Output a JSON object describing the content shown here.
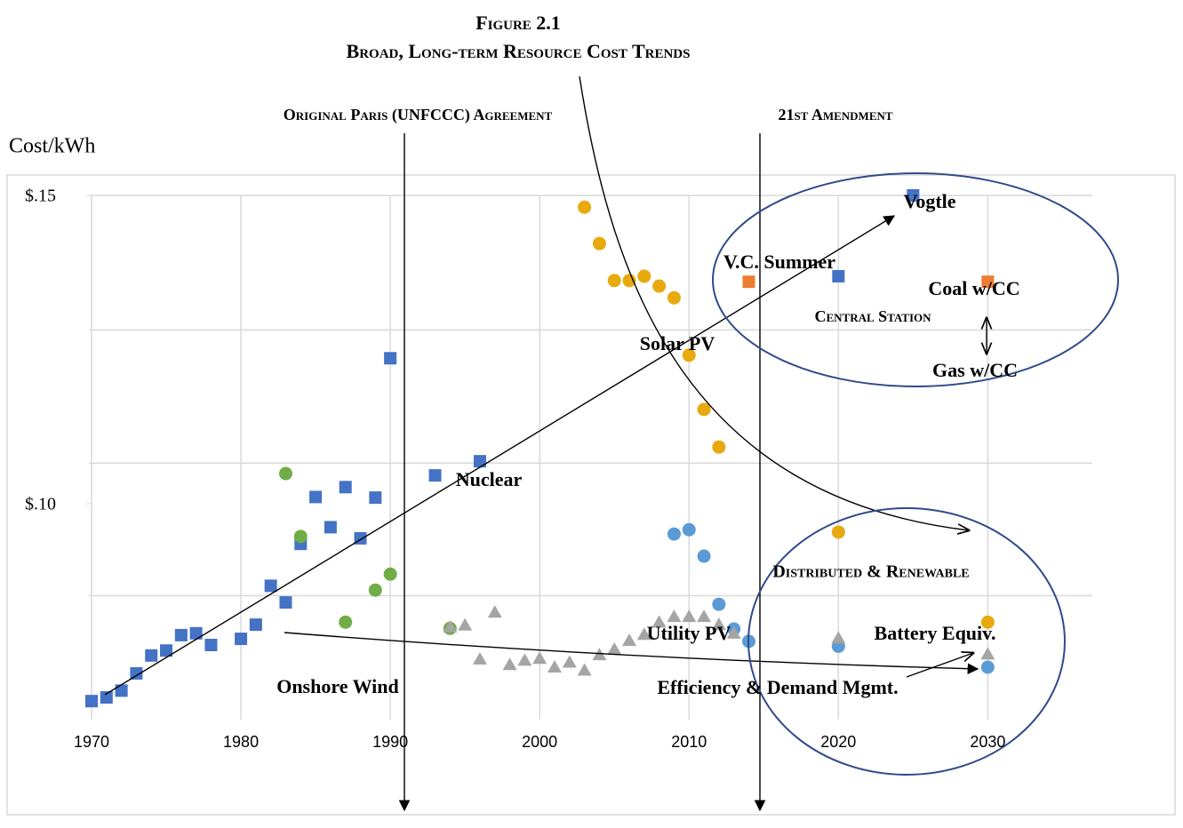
{
  "chart_data": {
    "type": "scatter",
    "title": "Figure 2.1",
    "subtitle": "Broad, Long-term Resource Cost Trends",
    "y_label": "Cost/kWh",
    "annotations": [
      "Original Paris (UNFCCC) Agreement",
      "21st Amendment",
      "Vogtle",
      "V.C. Summer",
      "Central Station",
      "Gas w/CC",
      "Distributed & Renewable",
      "Battery Equiv."
    ],
    "xlim": [
      1970,
      2037
    ],
    "ylim": [
      0.065,
      0.15
    ],
    "xticks": [
      1970,
      1980,
      1990,
      2000,
      2010,
      2020,
      2030
    ],
    "yticks": [
      {
        "value": 0.15,
        "label": "$.15"
      },
      {
        "value": 0.1,
        "label": "$.10"
      }
    ],
    "ygrid": [
      0.15,
      0.1282,
      0.1066,
      0.0851
    ],
    "grid": true,
    "series": [
      {
        "name": "Nuclear",
        "color": "#4472c4",
        "marker": "square",
        "x": [
          1970,
          1971,
          1972,
          1973,
          1974,
          1975,
          1976,
          1977,
          1978,
          1980,
          1981,
          1982,
          1983,
          1984,
          1985,
          1986,
          1987,
          1988,
          1989,
          1990,
          1993,
          1996,
          2020,
          2025
        ],
        "y": [
          0.068,
          0.0686,
          0.0697,
          0.0725,
          0.0754,
          0.0762,
          0.0787,
          0.079,
          0.0771,
          0.0781,
          0.0804,
          0.0867,
          0.084,
          0.0935,
          0.1011,
          0.0962,
          0.1027,
          0.0944,
          0.101,
          0.1236,
          0.1046,
          0.1069,
          0.1369,
          0.15
        ]
      },
      {
        "name": "Coal w/CC",
        "color": "#ed7d31",
        "marker": "square",
        "x": [
          2014,
          2030
        ],
        "y": [
          0.136,
          0.136
        ]
      },
      {
        "name": "Solar PV",
        "color": "#e8a90e",
        "marker": "circle",
        "x": [
          2003,
          2004,
          2005,
          2006,
          2007,
          2008,
          2009,
          2010,
          2011,
          2012,
          2020,
          2030
        ],
        "y": [
          0.1481,
          0.1422,
          0.1362,
          0.1362,
          0.1369,
          0.1353,
          0.1334,
          0.1241,
          0.1153,
          0.1092,
          0.0954,
          0.0808
        ]
      },
      {
        "name": "Utility PV",
        "color": "#5b9bd5",
        "marker": "circle",
        "x": [
          2009,
          2010,
          2011,
          2012,
          2013,
          2014,
          2020,
          2030
        ],
        "y": [
          0.0951,
          0.0958,
          0.0915,
          0.0837,
          0.0797,
          0.0777,
          0.0769,
          0.0735
        ]
      },
      {
        "name": "Onshore Wind",
        "color": "#70ad47",
        "marker": "circle",
        "x": [
          1983,
          1984,
          1987,
          1989,
          1990,
          1994
        ],
        "y": [
          0.1049,
          0.0947,
          0.0808,
          0.086,
          0.0886,
          0.0798
        ]
      },
      {
        "name": "Efficiency & Demand Mgmt.",
        "color": "#a5a5a5",
        "marker": "triangle",
        "x": [
          1994,
          1995,
          1996,
          1997,
          1998,
          1999,
          2000,
          2001,
          2002,
          2003,
          2004,
          2005,
          2006,
          2007,
          2008,
          2009,
          2010,
          2011,
          2012,
          2013,
          2020,
          2030
        ],
        "y": [
          0.08,
          0.0803,
          0.0748,
          0.0824,
          0.0739,
          0.0746,
          0.0749,
          0.0735,
          0.0743,
          0.073,
          0.0755,
          0.0764,
          0.0778,
          0.0788,
          0.0808,
          0.0817,
          0.0817,
          0.0817,
          0.0804,
          0.079,
          0.0782,
          0.0756
        ]
      }
    ]
  }
}
